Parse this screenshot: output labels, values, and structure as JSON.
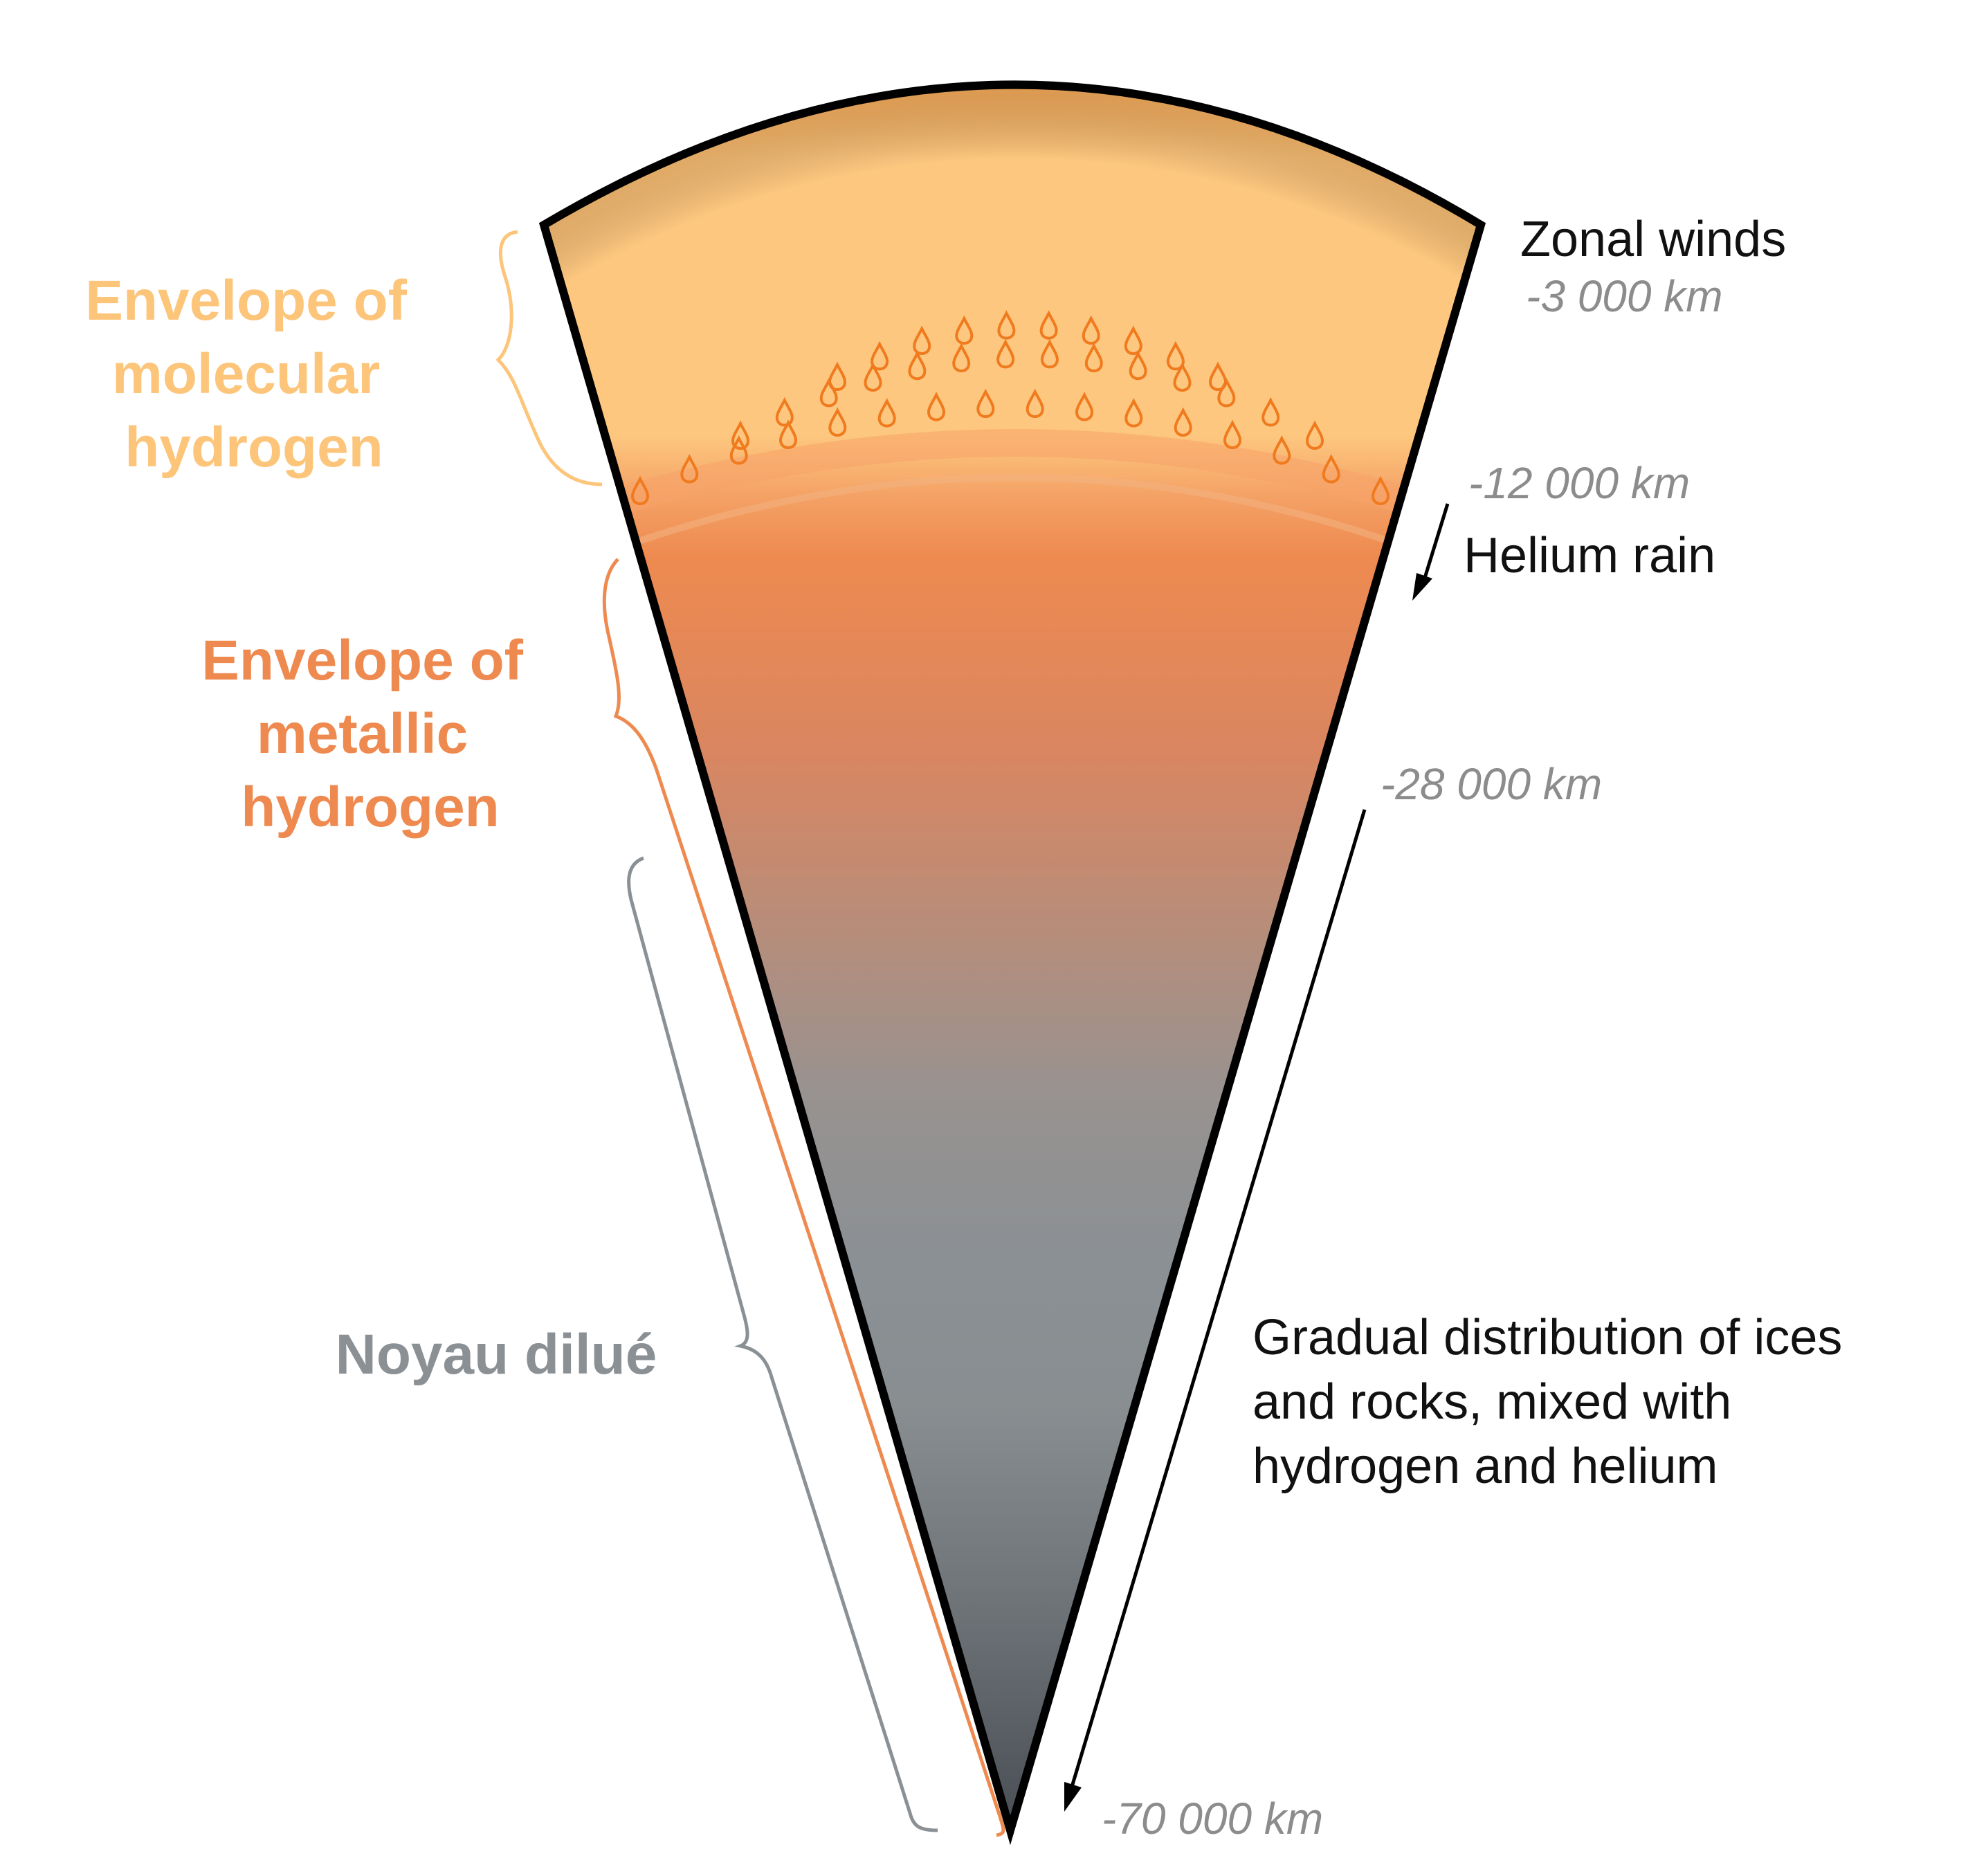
{
  "layers": [
    {
      "id": "molecular",
      "label_lines": [
        "Envelope of",
        "molecular",
        "hydrogen"
      ],
      "color": "#FCC57A"
    },
    {
      "id": "metallic",
      "label_lines": [
        "Envelope of",
        "metallic",
        "hydrogen"
      ],
      "color": "#EE8A50"
    },
    {
      "id": "core",
      "label_lines": [
        "Noyau dilué"
      ],
      "color": "#8A9094"
    }
  ],
  "annotations": {
    "zonal_winds": "Zonal winds",
    "helium_rain": "Helium rain",
    "gradual_lines": [
      "Gradual distribution of ices",
      "and rocks, mixed with",
      "hydrogen and helium"
    ]
  },
  "depths": [
    "-3 000 km",
    "-12 000 km",
    "-28 000 km",
    "-70 000 km"
  ],
  "colors": {
    "outline": "#000000",
    "droplet": "#F07A1E",
    "depth_text": "#8c8c8c",
    "core_dark": "#4A5055"
  }
}
